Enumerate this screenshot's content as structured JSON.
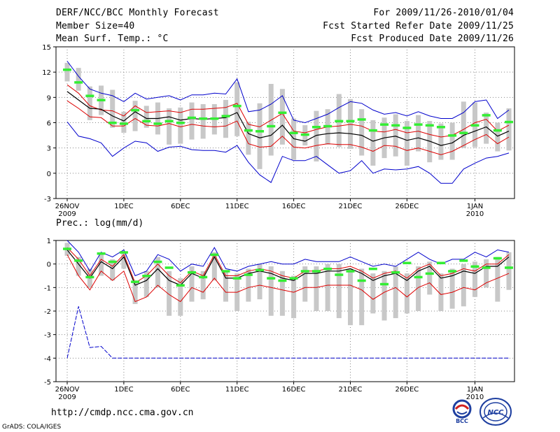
{
  "header": {
    "title": "DERF/NCC/BCC Monthly Forecast",
    "member": "Member Size=40",
    "variable": "Mean Surf. Temp.: °C",
    "period": "For 2009/11/26-2010/01/04",
    "refer": "Fcst Started Refer Date 2009/11/25",
    "produced": "Fcst Produced Date 2009/11/26"
  },
  "footer": {
    "url": "http://cmdp.ncc.cma.gov.cn",
    "grads": "GrADS: COLA/IGES",
    "logo_left_text": "BCC",
    "logo_right_text": "NCC"
  },
  "colors": {
    "max": "#0000cc",
    "pct": "#dd0000",
    "mean": "#000000",
    "box": "#c8c8c8",
    "marker": "#33ee33"
  },
  "chart_data": [
    {
      "type": "line",
      "title": "Mean Surf. Temp.: °C",
      "ylim": [
        -3,
        15
      ],
      "yticks": [
        -3,
        0,
        3,
        6,
        9,
        12,
        15
      ],
      "ytick_labels": [
        "-3",
        "0",
        "3",
        "6",
        "9",
        "12",
        "15"
      ],
      "xticks": [
        {
          "day": 0,
          "label": "26NOV",
          "sub": "2009"
        },
        {
          "day": 5,
          "label": "1DEC",
          "sub": ""
        },
        {
          "day": 10,
          "label": "6DEC",
          "sub": ""
        },
        {
          "day": 15,
          "label": "11DEC",
          "sub": ""
        },
        {
          "day": 20,
          "label": "16DEC",
          "sub": ""
        },
        {
          "day": 25,
          "label": "21DEC",
          "sub": ""
        },
        {
          "day": 30,
          "label": "26DEC",
          "sub": ""
        },
        {
          "day": 36,
          "label": "1JAN",
          "sub": "2010"
        }
      ],
      "x": [
        0,
        1,
        2,
        3,
        4,
        5,
        6,
        7,
        8,
        9,
        10,
        11,
        12,
        13,
        14,
        15,
        16,
        17,
        18,
        19,
        20,
        21,
        22,
        23,
        24,
        25,
        26,
        27,
        28,
        29,
        30,
        31,
        32,
        33,
        34,
        35,
        36,
        37,
        38,
        39
      ],
      "series": [
        {
          "name": "max",
          "values": [
            13.3,
            11.5,
            10.0,
            9.5,
            9.2,
            8.5,
            9.5,
            8.8,
            9.0,
            9.2,
            8.7,
            9.3,
            9.3,
            9.5,
            9.4,
            11.2,
            7.3,
            7.5,
            8.2,
            9.2,
            6.3,
            6.0,
            6.5,
            7.0,
            7.8,
            8.5,
            8.3,
            7.5,
            7.0,
            7.2,
            6.8,
            7.3,
            6.8,
            6.5,
            6.5,
            7.2,
            8.5,
            8.7,
            6.5,
            7.5
          ]
        },
        {
          "name": "p90",
          "values": [
            10.5,
            9.5,
            8.0,
            7.5,
            7.4,
            6.8,
            8.0,
            7.2,
            7.3,
            7.4,
            7.2,
            7.6,
            7.6,
            7.7,
            7.8,
            8.3,
            5.8,
            5.5,
            6.3,
            7.1,
            5.0,
            4.8,
            5.2,
            5.5,
            5.6,
            5.8,
            5.6,
            5.0,
            4.9,
            5.2,
            4.8,
            5.0,
            4.6,
            4.3,
            4.5,
            5.2,
            6.0,
            6.4,
            5.0,
            5.7
          ]
        },
        {
          "name": "mean",
          "values": [
            9.7,
            8.7,
            7.7,
            7.6,
            6.8,
            6.2,
            7.3,
            6.5,
            6.5,
            6.7,
            6.3,
            6.5,
            6.4,
            6.5,
            6.6,
            7.2,
            4.7,
            4.2,
            4.5,
            5.7,
            4.1,
            3.8,
            4.5,
            4.7,
            4.8,
            4.7,
            4.5,
            3.8,
            4.2,
            4.4,
            3.9,
            4.2,
            3.8,
            3.3,
            3.6,
            4.5,
            5.0,
            5.5,
            4.4,
            5.0
          ]
        },
        {
          "name": "p10",
          "values": [
            8.6,
            7.7,
            6.7,
            6.6,
            5.6,
            5.6,
            6.5,
            5.7,
            5.6,
            5.9,
            5.5,
            5.8,
            5.6,
            5.5,
            5.6,
            6.2,
            3.5,
            3.1,
            3.2,
            4.4,
            3.1,
            3.0,
            3.3,
            3.5,
            3.4,
            3.4,
            3.1,
            2.6,
            3.3,
            3.2,
            2.7,
            3.0,
            2.6,
            2.2,
            2.6,
            3.3,
            4.0,
            4.6,
            3.5,
            4.3
          ]
        },
        {
          "name": "min",
          "values": [
            6.1,
            4.4,
            4.1,
            3.6,
            2.0,
            3.0,
            3.8,
            3.6,
            2.6,
            3.1,
            3.2,
            2.8,
            2.7,
            2.7,
            2.5,
            3.3,
            1.3,
            -0.2,
            -1.1,
            2.0,
            1.5,
            1.5,
            2.0,
            1.0,
            0.0,
            0.3,
            1.5,
            0.0,
            0.5,
            0.4,
            0.5,
            0.8,
            0.0,
            -1.2,
            -1.2,
            0.5,
            1.2,
            1.8,
            2.0,
            2.4
          ]
        }
      ],
      "boxes": [
        {
          "lo": 10.9,
          "hi": 13.1
        },
        {
          "lo": 9.8,
          "hi": 12.5
        },
        {
          "lo": 6.3,
          "hi": 10.3
        },
        {
          "lo": 6.9,
          "hi": 10.4
        },
        {
          "lo": 5.4,
          "hi": 9.9
        },
        {
          "lo": 4.8,
          "hi": 7.3
        },
        {
          "lo": 5.0,
          "hi": 8.6
        },
        {
          "lo": 5.4,
          "hi": 8.0
        },
        {
          "lo": 4.6,
          "hi": 8.4
        },
        {
          "lo": 3.4,
          "hi": 7.7
        },
        {
          "lo": 3.5,
          "hi": 7.8
        },
        {
          "lo": 4.0,
          "hi": 8.4
        },
        {
          "lo": 4.1,
          "hi": 8.2
        },
        {
          "lo": 4.6,
          "hi": 8.2
        },
        {
          "lo": 4.2,
          "hi": 8.7
        },
        {
          "lo": 4.4,
          "hi": 10.8
        },
        {
          "lo": 2.2,
          "hi": 6.1
        },
        {
          "lo": 0.5,
          "hi": 8.3
        },
        {
          "lo": 2.1,
          "hi": 10.6
        },
        {
          "lo": 3.4,
          "hi": 10.0
        },
        {
          "lo": 1.6,
          "hi": 6.5
        },
        {
          "lo": 3.3,
          "hi": 5.7
        },
        {
          "lo": 1.4,
          "hi": 7.4
        },
        {
          "lo": 3.4,
          "hi": 7.6
        },
        {
          "lo": 3.1,
          "hi": 9.4
        },
        {
          "lo": 2.9,
          "hi": 8.8
        },
        {
          "lo": 2.1,
          "hi": 7.6
        },
        {
          "lo": 0.9,
          "hi": 6.3
        },
        {
          "lo": 1.8,
          "hi": 6.6
        },
        {
          "lo": 2.0,
          "hi": 7.0
        },
        {
          "lo": 0.9,
          "hi": 6.2
        },
        {
          "lo": 2.6,
          "hi": 6.9
        },
        {
          "lo": 1.3,
          "hi": 6.2
        },
        {
          "lo": 1.6,
          "hi": 5.9
        },
        {
          "lo": 1.6,
          "hi": 6.0
        },
        {
          "lo": 3.0,
          "hi": 8.5
        },
        {
          "lo": 3.1,
          "hi": 8.4
        },
        {
          "lo": 3.5,
          "hi": 7.2
        },
        {
          "lo": 2.6,
          "hi": 6.0
        },
        {
          "lo": 2.7,
          "hi": 7.7
        }
      ],
      "markers": [
        12.3,
        10.8,
        9.2,
        8.7,
        6.0,
        5.9,
        7.5,
        6.2,
        5.9,
        6.2,
        6.0,
        6.6,
        6.5,
        6.5,
        6.8,
        8.0,
        5.1,
        5.0,
        5.6,
        7.2,
        4.8,
        4.6,
        5.5,
        5.6,
        6.2,
        6.2,
        6.4,
        5.1,
        5.8,
        5.7,
        5.4,
        5.8,
        5.7,
        5.5,
        4.5,
        4.8,
        5.7,
        6.9,
        5.1,
        6.1
      ]
    },
    {
      "type": "line",
      "title": "Prec.: log(mm/d)",
      "ylim": [
        -5,
        1
      ],
      "yticks": [
        -5,
        -4,
        -3,
        -2,
        -1,
        0,
        1
      ],
      "ytick_labels": [
        "-5",
        "-4",
        "-3",
        "-2",
        "-1",
        "0",
        "1"
      ],
      "xticks": [
        {
          "day": 0,
          "label": "26NOV",
          "sub": "2009"
        },
        {
          "day": 5,
          "label": "1DEC",
          "sub": ""
        },
        {
          "day": 10,
          "label": "6DEC",
          "sub": ""
        },
        {
          "day": 15,
          "label": "11DEC",
          "sub": ""
        },
        {
          "day": 20,
          "label": "16DEC",
          "sub": ""
        },
        {
          "day": 25,
          "label": "21DEC",
          "sub": ""
        },
        {
          "day": 30,
          "label": "26DEC",
          "sub": ""
        },
        {
          "day": 36,
          "label": "1JAN",
          "sub": "2010"
        }
      ],
      "x": [
        0,
        1,
        2,
        3,
        4,
        5,
        6,
        7,
        8,
        9,
        10,
        11,
        12,
        13,
        14,
        15,
        16,
        17,
        18,
        19,
        20,
        21,
        22,
        23,
        24,
        25,
        26,
        27,
        28,
        29,
        30,
        31,
        32,
        33,
        34,
        35,
        36,
        37,
        38,
        39
      ],
      "series": [
        {
          "name": "max",
          "values": [
            1.0,
            0.5,
            -0.3,
            0.5,
            0.3,
            0.6,
            -0.5,
            -0.3,
            0.4,
            0.2,
            -0.3,
            0.0,
            -0.1,
            0.7,
            -0.2,
            -0.3,
            -0.1,
            0.0,
            0.1,
            0.0,
            0.0,
            0.2,
            0.1,
            0.1,
            0.1,
            0.3,
            0.1,
            -0.1,
            0.0,
            -0.1,
            0.2,
            0.5,
            0.2,
            0.0,
            0.2,
            0.2,
            0.5,
            0.3,
            0.6,
            0.5
          ]
        },
        {
          "name": "p90",
          "values": [
            0.7,
            0.2,
            -0.5,
            0.2,
            -0.1,
            0.4,
            -0.8,
            -0.5,
            0.0,
            -0.5,
            -0.8,
            -0.3,
            -0.5,
            0.4,
            -0.5,
            -0.5,
            -0.3,
            -0.2,
            -0.3,
            -0.5,
            -0.6,
            -0.3,
            -0.3,
            -0.2,
            -0.2,
            -0.1,
            -0.3,
            -0.6,
            -0.4,
            -0.3,
            -0.6,
            -0.2,
            0.0,
            -0.5,
            -0.4,
            -0.2,
            -0.3,
            0.0,
            0.0,
            0.4
          ]
        },
        {
          "name": "mean",
          "values": [
            0.6,
            0.0,
            -0.6,
            0.1,
            -0.2,
            0.3,
            -0.9,
            -0.7,
            -0.2,
            -0.7,
            -0.9,
            -0.4,
            -0.6,
            0.3,
            -0.6,
            -0.6,
            -0.4,
            -0.3,
            -0.4,
            -0.6,
            -0.7,
            -0.4,
            -0.4,
            -0.3,
            -0.3,
            -0.2,
            -0.4,
            -0.7,
            -0.5,
            -0.4,
            -0.7,
            -0.3,
            -0.1,
            -0.6,
            -0.5,
            -0.3,
            -0.4,
            -0.1,
            -0.1,
            0.3
          ]
        },
        {
          "name": "p10",
          "values": [
            0.4,
            -0.5,
            -1.1,
            -0.3,
            -0.7,
            -0.3,
            -1.6,
            -1.4,
            -0.9,
            -1.3,
            -1.6,
            -1.0,
            -1.2,
            -0.6,
            -1.2,
            -1.2,
            -1.0,
            -0.9,
            -1.0,
            -1.1,
            -1.2,
            -1.0,
            -1.0,
            -0.9,
            -0.9,
            -0.9,
            -1.1,
            -1.5,
            -1.2,
            -1.0,
            -1.4,
            -1.0,
            -0.8,
            -1.3,
            -1.2,
            -1.0,
            -1.1,
            -0.8,
            -0.6,
            -0.4
          ]
        },
        {
          "name": "min",
          "values": [
            -4.0,
            -1.8,
            -3.55,
            -3.5,
            -4.0,
            -4.0,
            -4.0,
            -4.0,
            -4.0,
            -4.0,
            -4.0,
            -4.0,
            -4.0,
            -4.0,
            -4.0,
            -4.0,
            -4.0,
            -4.0,
            -4.0,
            -4.0,
            -4.0,
            -4.0,
            -4.0,
            -4.0,
            -4.0,
            -4.0,
            -4.0,
            -4.0,
            -4.0,
            -4.0,
            -4.0,
            -4.0,
            -4.0,
            -4.0,
            -4.0,
            -4.0,
            -4.0,
            -4.0,
            -4.0,
            -4.0
          ]
        }
      ],
      "boxes": [
        {
          "lo": 0.35,
          "hi": 0.9
        },
        {
          "lo": -0.5,
          "hi": 0.3
        },
        {
          "lo": -1.0,
          "hi": -0.2
        },
        {
          "lo": -0.5,
          "hi": 0.4
        },
        {
          "lo": -0.7,
          "hi": 0.2
        },
        {
          "lo": -0.2,
          "hi": 0.5
        },
        {
          "lo": -1.7,
          "hi": -0.7
        },
        {
          "lo": -1.4,
          "hi": -0.3
        },
        {
          "lo": -1.0,
          "hi": 0.3
        },
        {
          "lo": -2.2,
          "hi": -0.3
        },
        {
          "lo": -2.2,
          "hi": -0.6
        },
        {
          "lo": -1.6,
          "hi": -0.1
        },
        {
          "lo": -1.5,
          "hi": -0.3
        },
        {
          "lo": -0.7,
          "hi": 0.5
        },
        {
          "lo": -1.6,
          "hi": -0.3
        },
        {
          "lo": -2.0,
          "hi": -0.4
        },
        {
          "lo": -1.6,
          "hi": -0.2
        },
        {
          "lo": -1.5,
          "hi": 0.0
        },
        {
          "lo": -2.2,
          "hi": -0.1
        },
        {
          "lo": -2.2,
          "hi": -0.3
        },
        {
          "lo": -2.3,
          "hi": -0.5
        },
        {
          "lo": -1.6,
          "hi": -0.1
        },
        {
          "lo": -2.0,
          "hi": -0.1
        },
        {
          "lo": -2.0,
          "hi": 0.0
        },
        {
          "lo": -2.3,
          "hi": 0.0
        },
        {
          "lo": -2.6,
          "hi": -0.2
        },
        {
          "lo": -2.6,
          "hi": -0.2
        },
        {
          "lo": -2.1,
          "hi": -0.4
        },
        {
          "lo": -2.4,
          "hi": -0.3
        },
        {
          "lo": -2.3,
          "hi": -0.1
        },
        {
          "lo": -2.1,
          "hi": -0.4
        },
        {
          "lo": -2.0,
          "hi": -0.1
        },
        {
          "lo": -1.3,
          "hi": 0.1
        },
        {
          "lo": -2.0,
          "hi": -0.4
        },
        {
          "lo": -1.9,
          "hi": -0.2
        },
        {
          "lo": -1.8,
          "hi": 0.0
        },
        {
          "lo": -1.4,
          "hi": 0.1
        },
        {
          "lo": -1.0,
          "hi": 0.2
        },
        {
          "lo": -1.6,
          "hi": 0.3
        },
        {
          "lo": -1.1,
          "hi": 0.5
        }
      ],
      "markers": [
        0.65,
        0.15,
        -0.55,
        0.45,
        0.1,
        0.5,
        -0.75,
        -0.5,
        0.1,
        -0.15,
        -0.9,
        -0.35,
        -0.55,
        0.4,
        -0.3,
        -0.6,
        -0.45,
        -0.25,
        -0.6,
        -0.7,
        -0.6,
        -0.3,
        -0.3,
        -0.2,
        -0.45,
        -0.3,
        -0.7,
        -0.2,
        -0.85,
        -0.35,
        0.05,
        -0.55,
        -0.4,
        0.05,
        -0.3,
        0.15,
        -0.1,
        -0.15,
        0.25,
        -0.15
      ]
    }
  ]
}
